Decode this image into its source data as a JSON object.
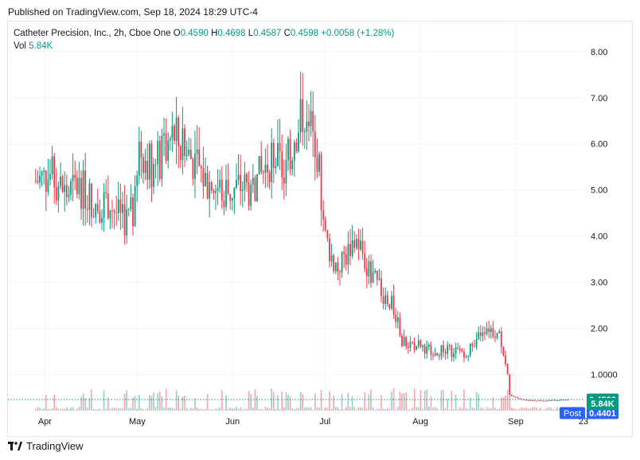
{
  "header": {
    "published": "Published on TradingView.com, Sep 18, 2024 18:29 UTC-4"
  },
  "legend": {
    "symbol": "Catheter Precision, Inc., 2h, Cboe One",
    "o_label": "O",
    "o": "0.4590",
    "h_label": "H",
    "h": "0.4698",
    "l_label": "L",
    "l": "0.4587",
    "c_label": "C",
    "c": "0.4598",
    "change": "+0.0058 (+1.28%)",
    "vol_label": "Vol",
    "vol": "5.84K"
  },
  "footer": {
    "brand": "TradingView"
  },
  "colors": {
    "up": "#089981",
    "down": "#f23645",
    "grid": "#f0f3fa",
    "price_line": "#089981",
    "post": "#2962ff"
  },
  "chart_data": {
    "type": "candlestick",
    "y_ticks": [
      "8.00",
      "7.00",
      "6.00",
      "5.00",
      "4.00",
      "3.00",
      "2.00",
      "1.0000"
    ],
    "y_tick_values": [
      8,
      7,
      6,
      5,
      4,
      3,
      2,
      1
    ],
    "x_ticks": [
      "Apr",
      "May",
      "Jun",
      "Jul",
      "Aug",
      "Sep",
      "23"
    ],
    "ylim": [
      0.2,
      8.6
    ],
    "current_price": {
      "label": "0.4598",
      "value": 0.4598
    },
    "post_price": {
      "tag": "Post",
      "label": "0.4401",
      "value": 0.4401
    },
    "volume_label": "5.84K",
    "price_path": [
      [
        "Mar 29",
        5.2
      ],
      [
        "Apr 3",
        5.3
      ],
      [
        "Apr 8",
        4.9
      ],
      [
        "Apr 12",
        5.1
      ],
      [
        "Apr 17",
        4.7
      ],
      [
        "Apr 22",
        4.75
      ],
      [
        "Apr 26",
        4.3
      ],
      [
        "Apr 30",
        4.5
      ],
      [
        "May 2",
        5.9
      ],
      [
        "May 6",
        5.5
      ],
      [
        "May 9",
        5.7
      ],
      [
        "May 13",
        6.2
      ],
      [
        "May 16",
        5.8
      ],
      [
        "May 20",
        5.6
      ],
      [
        "May 23",
        5.2
      ],
      [
        "May 28",
        5.0
      ],
      [
        "May 31",
        4.95
      ],
      [
        "Jun 4",
        5.1
      ],
      [
        "Jun 7",
        5.0
      ],
      [
        "Jun 11",
        5.4
      ],
      [
        "Jun 14",
        5.8
      ],
      [
        "Jun 18",
        5.3
      ],
      [
        "Jun 21",
        6.2
      ],
      [
        "Jun 25",
        6.9
      ],
      [
        "Jun 27",
        6.0
      ],
      [
        "Jun 28",
        6.2
      ],
      [
        "Jul 1",
        4.0
      ],
      [
        "Jul 3",
        3.6
      ],
      [
        "Jul 5",
        3.3
      ],
      [
        "Jul 9",
        3.7
      ],
      [
        "Jul 11",
        3.9
      ],
      [
        "Jul 12",
        3.85
      ],
      [
        "Jul 15",
        3.3
      ],
      [
        "Jul 18",
        2.9
      ],
      [
        "Jul 22",
        2.6
      ],
      [
        "Jul 24",
        2.3
      ],
      [
        "Jul 26",
        1.7
      ],
      [
        "Jul 30",
        1.65
      ],
      [
        "Aug 5",
        1.55
      ],
      [
        "Aug 12",
        1.5
      ],
      [
        "Aug 16",
        1.5
      ],
      [
        "Aug 19",
        1.6
      ],
      [
        "Aug 21",
        2.0
      ],
      [
        "Aug 23",
        2.05
      ],
      [
        "Aug 27",
        1.8
      ],
      [
        "Aug 29",
        1.2
      ],
      [
        "Aug 30",
        0.55
      ],
      [
        "Sep 4",
        0.44
      ],
      [
        "Sep 10",
        0.43
      ],
      [
        "Sep 16",
        0.45
      ],
      [
        "Sep 18",
        0.46
      ]
    ]
  }
}
